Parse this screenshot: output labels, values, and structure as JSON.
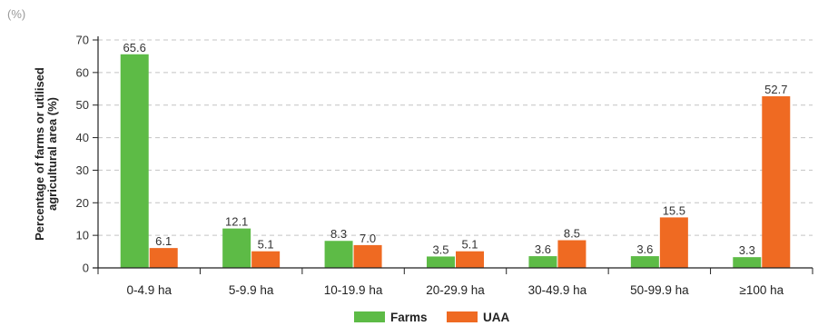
{
  "unit_label": "(%)",
  "chart_data": {
    "type": "bar",
    "title": "",
    "xlabel": "",
    "ylabel_lines": [
      "Percentage of farms or utilised",
      "agricultural area (%)"
    ],
    "ylim": [
      0,
      70
    ],
    "yticks": [
      0,
      10,
      20,
      30,
      40,
      50,
      60,
      70
    ],
    "grid": true,
    "legend_position": "bottom-center",
    "categories": [
      "0-4.9 ha",
      "5-9.9 ha",
      "10-19.9 ha",
      "20-29.9 ha",
      "30-49.9 ha",
      "50-99.9 ha",
      "≥100 ha"
    ],
    "series": [
      {
        "name": "Farms",
        "color": "#5dbb46",
        "values": [
          65.6,
          12.1,
          8.3,
          3.5,
          3.6,
          3.6,
          3.3
        ]
      },
      {
        "name": "UAA",
        "color": "#ef6a22",
        "values": [
          6.1,
          5.1,
          7.0,
          5.1,
          8.5,
          15.5,
          52.7
        ]
      }
    ]
  }
}
